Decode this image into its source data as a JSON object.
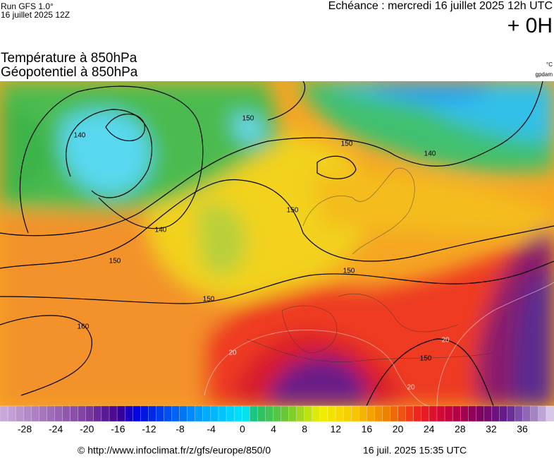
{
  "header": {
    "run": "Run GFS 1.0°",
    "run_date": "16 juillet 2025 12Z",
    "forecast": "Echéance : mercredi 16 juillet 2025 12h UTC",
    "lead": "+ 0H"
  },
  "titles": {
    "temperature": "Température à 850hPa",
    "geopotential": "Géopotentiel à 850hPa"
  },
  "units": {
    "temperature": "°C",
    "geopotential": "gpdam"
  },
  "contour_labels": [
    140,
    150,
    150,
    140,
    150,
    140,
    150,
    150,
    150,
    160,
    150
  ],
  "isotherm_labels": [
    20,
    20,
    20
  ],
  "colorbar": {
    "ticks": [
      -28,
      -24,
      -20,
      -16,
      -12,
      -8,
      -4,
      0,
      4,
      8,
      12,
      16,
      20,
      24,
      28,
      32,
      36
    ]
  },
  "footer": {
    "source": "© http://www.infoclimat.fr/z/gfs/europe/850/0",
    "timestamp": "16 juil. 2025 15:35 UTC"
  }
}
